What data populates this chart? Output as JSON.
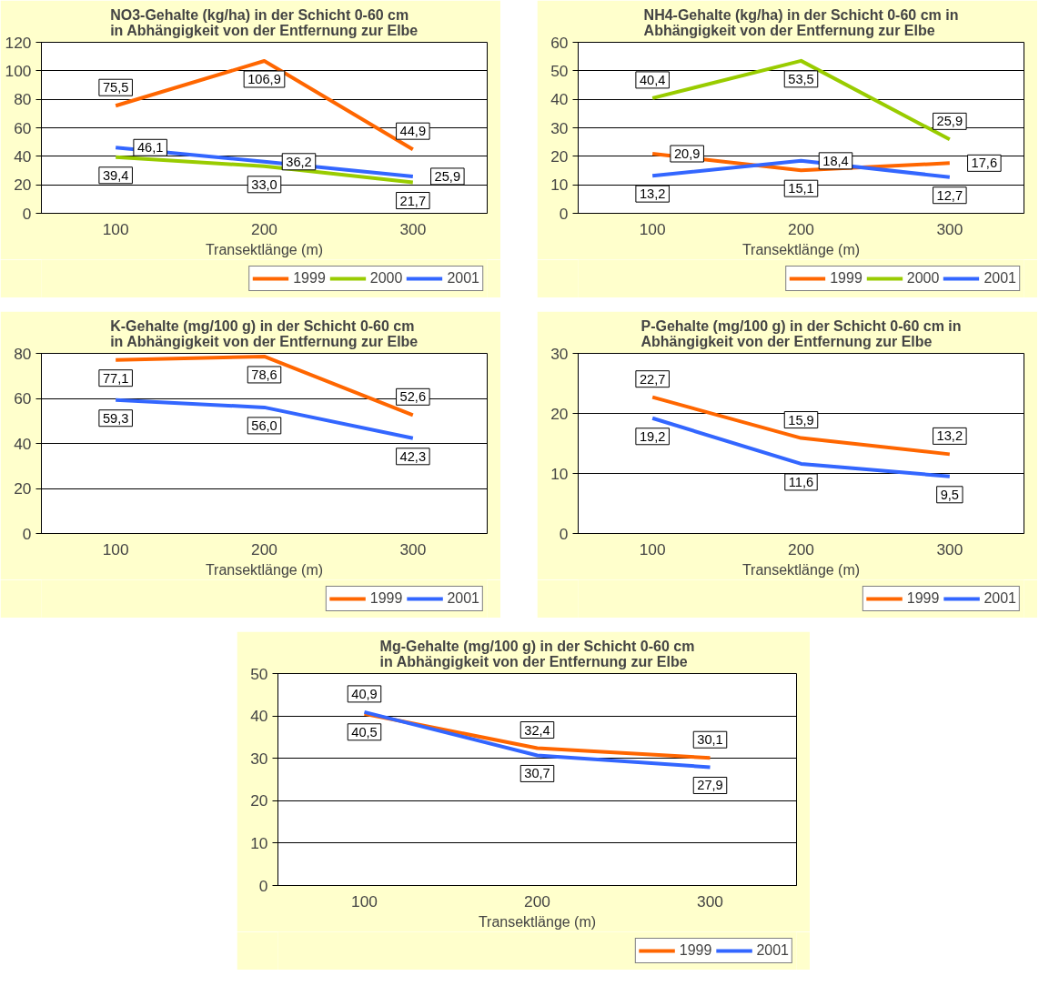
{
  "chart_data": [
    {
      "type": "line",
      "title": "NO3-Gehalte (kg/ha) in der Schicht 0-60 cm\nin Abhängigkeit von der Entfernung zur Elbe",
      "xlabel": "Transektlänge (m)",
      "categories": [
        "100",
        "200",
        "300"
      ],
      "ylim": [
        0,
        120
      ],
      "yticks": [
        0,
        20,
        40,
        60,
        80,
        100,
        120
      ],
      "grid": "y",
      "legend": "bottom right",
      "data_labels": true,
      "series": [
        {
          "name": "1999",
          "color": "#ff6600",
          "values": [
            75.5,
            106.9,
            44.9
          ],
          "value_labels": [
            "75,5",
            "106,9",
            "44,9"
          ]
        },
        {
          "name": "2000",
          "color": "#99cc00",
          "values": [
            39.4,
            33.0,
            21.7
          ],
          "value_labels": [
            "39,4",
            "33,0",
            "21,7"
          ]
        },
        {
          "name": "2001",
          "color": "#3366ff",
          "values": [
            46.1,
            36.2,
            25.9
          ],
          "value_labels": [
            "46,1",
            "36,2",
            "25,9"
          ]
        }
      ]
    },
    {
      "type": "line",
      "title": "NH4-Gehalte (kg/ha) in der Schicht 0-60 cm in\nAbhängigkeit von der Entfernung zur Elbe",
      "xlabel": "Transektlänge (m)",
      "categories": [
        "100",
        "200",
        "300"
      ],
      "ylim": [
        0,
        60
      ],
      "yticks": [
        0,
        10,
        20,
        30,
        40,
        50,
        60
      ],
      "grid": "y",
      "legend": "bottom right",
      "data_labels": true,
      "series": [
        {
          "name": "1999",
          "color": "#ff6600",
          "values": [
            20.9,
            15.1,
            17.6
          ],
          "value_labels": [
            "20,9",
            "15,1",
            "17,6"
          ]
        },
        {
          "name": "2000",
          "color": "#99cc00",
          "values": [
            40.4,
            53.5,
            25.9
          ],
          "value_labels": [
            "40,4",
            "53,5",
            "25,9"
          ]
        },
        {
          "name": "2001",
          "color": "#3366ff",
          "values": [
            13.2,
            18.4,
            12.7
          ],
          "value_labels": [
            "13,2",
            "18,4",
            "12,7"
          ]
        }
      ]
    },
    {
      "type": "line",
      "title": "K-Gehalte (mg/100 g) in der Schicht 0-60 cm\nin Abhängigkeit von der Entfernung zur Elbe",
      "xlabel": "Transektlänge (m)",
      "categories": [
        "100",
        "200",
        "300"
      ],
      "ylim": [
        0,
        80
      ],
      "yticks": [
        0,
        20,
        40,
        60,
        80
      ],
      "grid": "y",
      "legend": "bottom right",
      "data_labels": true,
      "series": [
        {
          "name": "1999",
          "color": "#ff6600",
          "values": [
            77.1,
            78.6,
            52.6
          ],
          "value_labels": [
            "77,1",
            "78,6",
            "52,6"
          ]
        },
        {
          "name": "2001",
          "color": "#3366ff",
          "values": [
            59.3,
            56.0,
            42.3
          ],
          "value_labels": [
            "59,3",
            "56,0",
            "42,3"
          ]
        }
      ]
    },
    {
      "type": "line",
      "title": "P-Gehalte (mg/100 g) in der Schicht 0-60 cm in\nAbhängigkeit von der Entfernung zur Elbe",
      "xlabel": "Transektlänge (m)",
      "categories": [
        "100",
        "200",
        "300"
      ],
      "ylim": [
        0,
        30
      ],
      "yticks": [
        0,
        10,
        20,
        30
      ],
      "grid": "y",
      "legend": "bottom right",
      "data_labels": true,
      "series": [
        {
          "name": "1999",
          "color": "#ff6600",
          "values": [
            22.7,
            15.9,
            13.2
          ],
          "value_labels": [
            "22,7",
            "15,9",
            "13,2"
          ]
        },
        {
          "name": "2001",
          "color": "#3366ff",
          "values": [
            19.2,
            11.6,
            9.5
          ],
          "value_labels": [
            "19,2",
            "11,6",
            "9,5"
          ]
        }
      ]
    },
    {
      "type": "line",
      "title": "Mg-Gehalte (mg/100 g) in der Schicht 0-60 cm\nin Abhängigkeit von der Entfernung zur Elbe",
      "xlabel": "Transektlänge (m)",
      "categories": [
        "100",
        "200",
        "300"
      ],
      "ylim": [
        0,
        50
      ],
      "yticks": [
        0,
        10,
        20,
        30,
        40,
        50
      ],
      "grid": "y",
      "legend": "bottom right",
      "data_labels": true,
      "series": [
        {
          "name": "1999",
          "color": "#ff6600",
          "values": [
            40.5,
            32.4,
            30.1
          ],
          "value_labels": [
            "40,5",
            "32,4",
            "30,1"
          ]
        },
        {
          "name": "2001",
          "color": "#3366ff",
          "values": [
            40.9,
            30.7,
            27.9
          ],
          "value_labels": [
            "40,9",
            "30,7",
            "27,9"
          ]
        }
      ]
    }
  ]
}
